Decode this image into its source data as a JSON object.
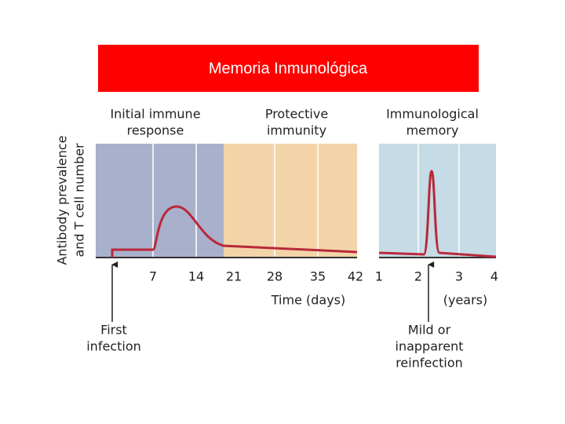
{
  "title": "Memoria Inmunológica",
  "phases": [
    {
      "label": [
        "Initial immune",
        "response"
      ]
    },
    {
      "label": [
        "Protective",
        "immunity"
      ]
    },
    {
      "label": [
        "Immunological",
        "memory"
      ]
    }
  ],
  "y_axis_label": [
    "Antibody prevalence",
    "and T cell number"
  ],
  "x_ticks_days": [
    7,
    14,
    21,
    28,
    35,
    42
  ],
  "x_ticks_years": [
    1,
    2,
    3,
    4
  ],
  "x_axis_label_days": "Time (days)",
  "x_axis_label_years": "(years)",
  "annotations": [
    {
      "label": [
        "First",
        "infection"
      ]
    },
    {
      "label": [
        "Mild or",
        "inapparent",
        "reinfection"
      ]
    }
  ]
}
